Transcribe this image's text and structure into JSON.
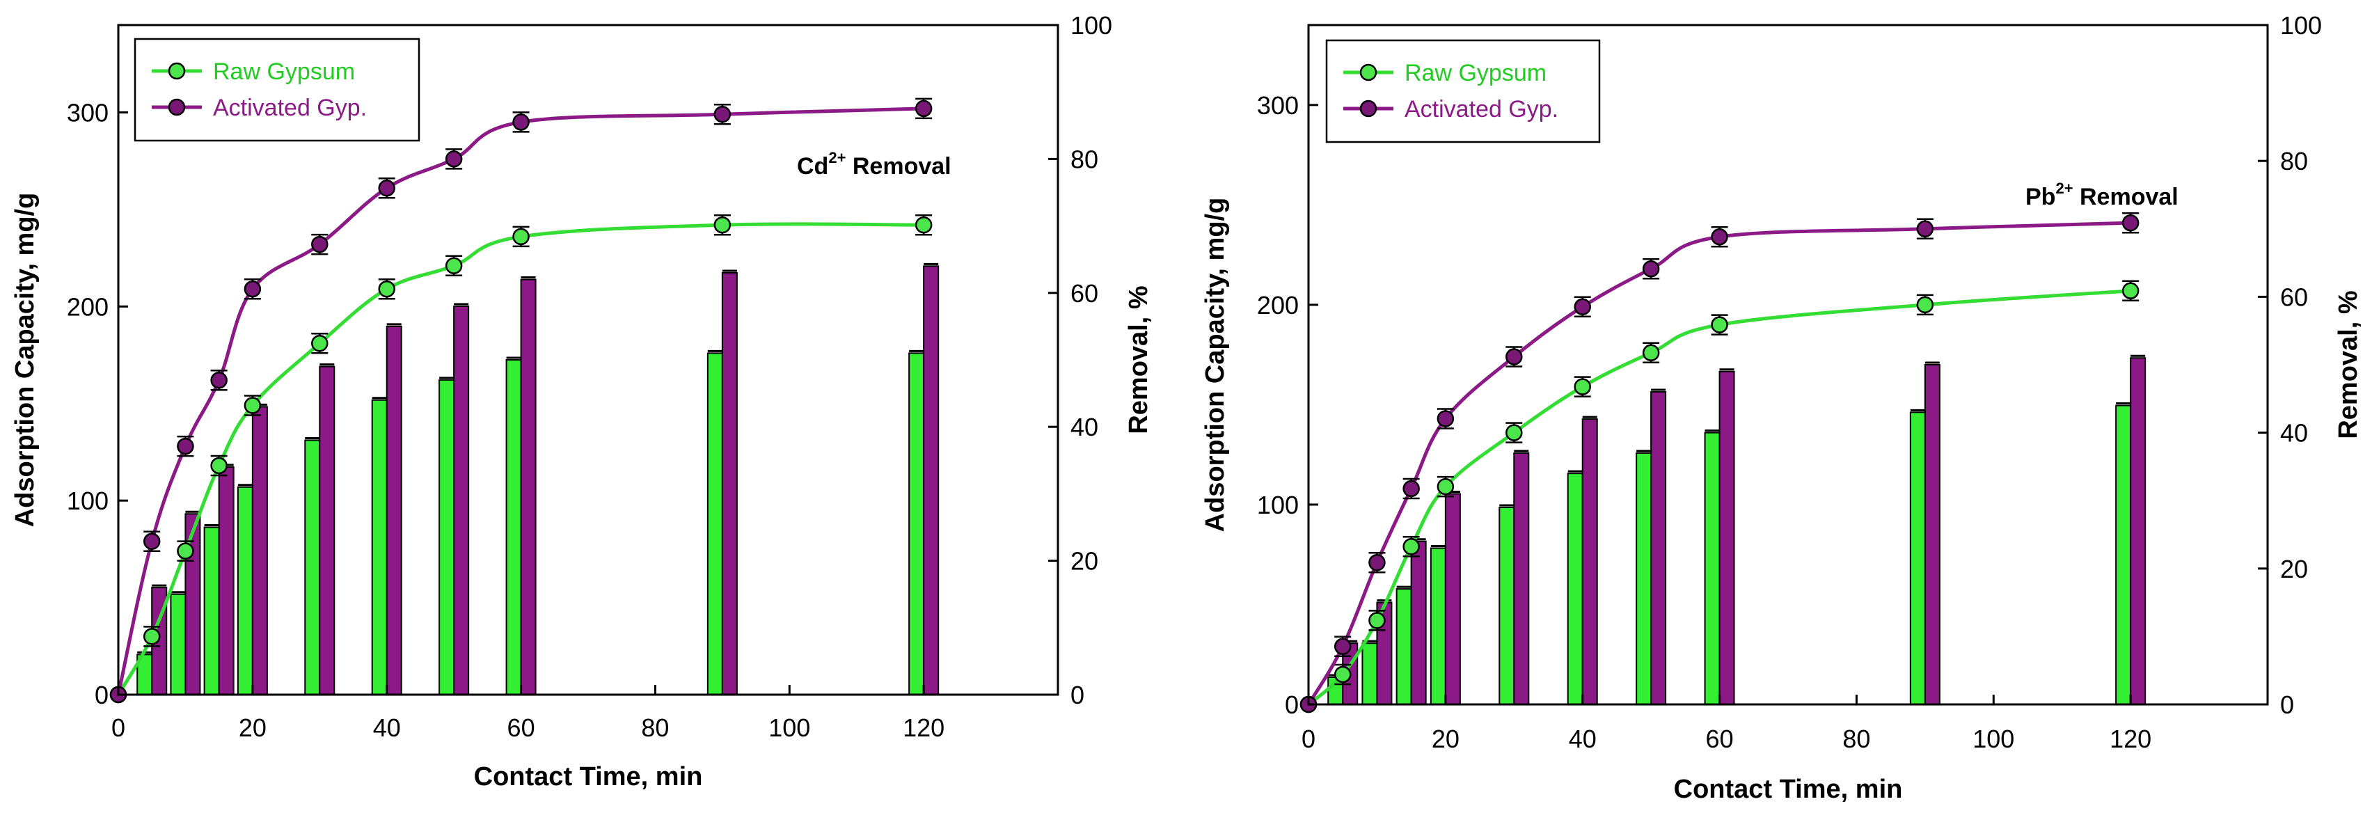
{
  "chart_data": [
    {
      "type": "bar+line",
      "annotation": {
        "base": "Cd",
        "sup": "2+",
        "rest": " Removal"
      },
      "xlabel": "Contact Time, min",
      "ylabel": "Adsorption Capacity, mg/g",
      "y2label": "Removal, %",
      "xlim": [
        0,
        140
      ],
      "ylim": [
        0,
        345
      ],
      "y2lim": [
        0,
        100
      ],
      "xticks": [
        0,
        20,
        40,
        60,
        80,
        100,
        120
      ],
      "yticks": [
        0,
        100,
        200,
        300
      ],
      "y2ticks": [
        0,
        20,
        40,
        60,
        80,
        100
      ],
      "x": [
        0,
        5,
        10,
        15,
        20,
        30,
        40,
        50,
        60,
        90,
        120
      ],
      "lines": [
        {
          "name": "Raw Gypsum",
          "color": "#33dd33",
          "marker": "#4ce64c",
          "values": [
            0,
            30,
            74,
            118,
            149,
            181,
            209,
            221,
            236,
            242,
            242
          ]
        },
        {
          "name": "Activated Gyp.",
          "color": "#8b1a86",
          "marker": "#7a1877",
          "values": [
            0,
            79,
            128,
            162,
            209,
            232,
            261,
            276,
            295,
            299,
            302
          ]
        }
      ],
      "bars": [
        {
          "name": "Raw Gypsum removal",
          "color": "#33ee33",
          "values": [
            0,
            6,
            15,
            25,
            31,
            38,
            44,
            47,
            50,
            51,
            51
          ]
        },
        {
          "name": "Activated Gyp. removal",
          "color": "#8b1a86",
          "values": [
            0,
            16,
            27,
            34,
            43,
            49,
            55,
            58,
            62,
            63,
            64
          ]
        }
      ]
    },
    {
      "type": "bar+line",
      "annotation": {
        "base": "Pb",
        "sup": "2+",
        "rest": " Removal"
      },
      "xlabel": "Contact Time, min",
      "ylabel": "Adsorption Capacity, mg/g",
      "y2label": "Removal, %",
      "xlim": [
        0,
        140
      ],
      "ylim": [
        0,
        340
      ],
      "y2lim": [
        0,
        100
      ],
      "xticks": [
        0,
        20,
        40,
        60,
        80,
        100,
        120
      ],
      "yticks": [
        0,
        100,
        200,
        300
      ],
      "y2ticks": [
        0,
        20,
        40,
        60,
        80,
        100
      ],
      "x": [
        0,
        5,
        10,
        15,
        20,
        30,
        40,
        50,
        60,
        90,
        120
      ],
      "lines": [
        {
          "name": "Raw Gypsum",
          "color": "#33dd33",
          "marker": "#4ce64c",
          "values": [
            0,
            15,
            42,
            79,
            109,
            136,
            159,
            176,
            190,
            200,
            207
          ]
        },
        {
          "name": "Activated Gyp.",
          "color": "#8b1a86",
          "marker": "#7a1877",
          "values": [
            0,
            29,
            71,
            108,
            143,
            174,
            199,
            218,
            234,
            238,
            241
          ]
        }
      ],
      "bars": [
        {
          "name": "Raw Gypsum removal",
          "color": "#33ee33",
          "values": [
            0,
            4,
            9,
            17,
            23,
            29,
            34,
            37,
            40,
            43,
            44
          ]
        },
        {
          "name": "Activated Gyp. removal",
          "color": "#8b1a86",
          "values": [
            0,
            9,
            15,
            24,
            31,
            37,
            42,
            46,
            49,
            50,
            51
          ]
        }
      ]
    }
  ]
}
